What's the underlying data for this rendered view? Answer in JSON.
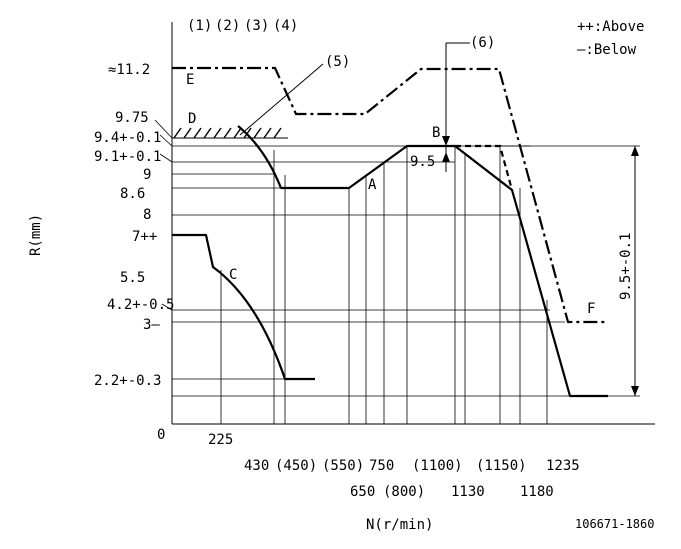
{
  "legend": {
    "above": "++:Above",
    "below": "—:Below"
  },
  "columns_header": [
    "(1)",
    "(2)",
    "(3)",
    "(4)"
  ],
  "callouts": {
    "c5": "(5)",
    "c6": "(6)"
  },
  "point_labels": {
    "A": "A",
    "B": "B",
    "C": "C",
    "D": "D",
    "E": "E",
    "F": "F"
  },
  "y_labels": {
    "y112": "≈11.2",
    "y975": "9.75",
    "y94": "9.4+-0.1",
    "y91": "9.1+-0.1",
    "y9": "9",
    "y86": "8.6",
    "y8": "8",
    "y7": "7++",
    "y55": "5.5",
    "y42": "4.2+-0.5",
    "y3": "3—",
    "y22": "2.2+-0.3",
    "y0": "0"
  },
  "x_labels": {
    "x225": "225",
    "x430": "430",
    "x450": "(450)",
    "x550": "(550)",
    "x650": "650",
    "x750": "750",
    "x800": "(800)",
    "x1100": "(1100)",
    "x1130": "1130",
    "x1150": "(1150)",
    "x1180": "1180",
    "x1235": "1235"
  },
  "inline_labels": {
    "b95": "9.5",
    "span": "9.5+-0.1"
  },
  "axis": {
    "ylabel": "R(mm)",
    "xlabel": "N(r/min)"
  },
  "figure_code": "106671-1860"
}
